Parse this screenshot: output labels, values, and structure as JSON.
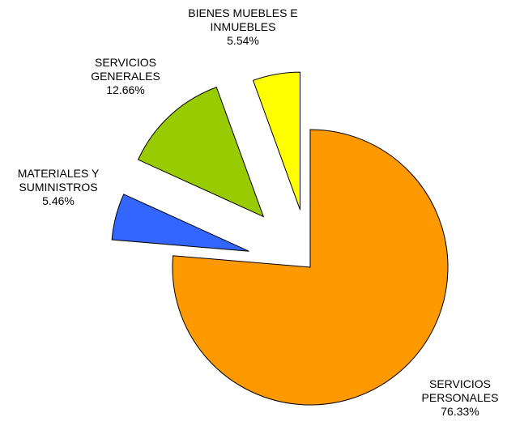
{
  "chart_data": {
    "type": "pie",
    "categories": [
      "SERVICIOS PERSONALES",
      "MATERIALES Y SUMINISTROS",
      "SERVICIOS GENERALES",
      "BIENES MUEBLES E INMUEBLES"
    ],
    "values": [
      76.33,
      5.46,
      12.66,
      5.54
    ],
    "value_labels": [
      "76.33%",
      "5.46%",
      "12.66%",
      "5.54%"
    ],
    "colors": [
      "#ff9900",
      "#3366ff",
      "#99cc00",
      "#ffff00"
    ],
    "exploded": true
  }
}
